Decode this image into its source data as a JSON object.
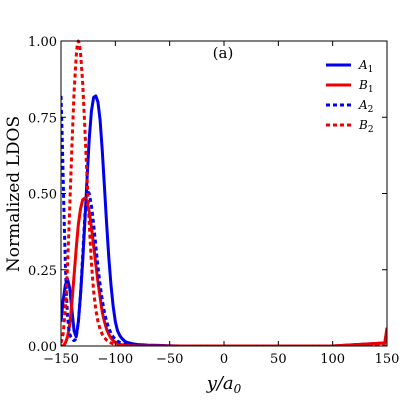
{
  "chart_data": {
    "type": "line",
    "panel_label": "(a)",
    "xlabel": "y/a",
    "xlabel_subscript": "0",
    "ylabel": "Normalized LDOS",
    "xlim": [
      -150,
      150
    ],
    "ylim": [
      0,
      1
    ],
    "xticks": [
      -150,
      -100,
      -50,
      0,
      50,
      100,
      150
    ],
    "xtick_labels": [
      "−150",
      "−100",
      "−50",
      "0",
      "50",
      "100",
      "150"
    ],
    "yticks": [
      0,
      0.25,
      0.5,
      0.75,
      1.0
    ],
    "ytick_labels": [
      "0.00",
      "0.25",
      "0.50",
      "0.75",
      "1.00"
    ],
    "grid": false,
    "legend_position": "top-right",
    "series": [
      {
        "name": "A",
        "name_subscript": "1",
        "color": "#0000ee",
        "dash": "solid",
        "x": [
          -150,
          -148,
          -146,
          -144,
          -142,
          -140,
          -138,
          -136,
          -134,
          -132,
          -130,
          -128,
          -126,
          -124,
          -122,
          -120,
          -118,
          -116,
          -114,
          -112,
          -110,
          -108,
          -106,
          -104,
          -102,
          -100,
          -98,
          -96,
          -94,
          -92,
          -90,
          -85,
          -80,
          -70,
          -60,
          -50,
          -40,
          0,
          50,
          100,
          148,
          150
        ],
        "y": [
          0.08,
          0.15,
          0.2,
          0.22,
          0.19,
          0.12,
          0.05,
          0.03,
          0.08,
          0.17,
          0.28,
          0.41,
          0.55,
          0.68,
          0.77,
          0.815,
          0.82,
          0.8,
          0.74,
          0.64,
          0.52,
          0.4,
          0.29,
          0.2,
          0.13,
          0.08,
          0.05,
          0.035,
          0.025,
          0.018,
          0.013,
          0.008,
          0.005,
          0.003,
          0.002,
          0.001,
          0,
          0,
          0,
          0,
          0.01,
          0.055
        ]
      },
      {
        "name": "B",
        "name_subscript": "1",
        "color": "#ee0000",
        "dash": "solid",
        "x": [
          -150,
          -148,
          -146,
          -144,
          -142,
          -140,
          -138,
          -136,
          -134,
          -132,
          -130,
          -128,
          -126,
          -124,
          -122,
          -120,
          -118,
          -116,
          -114,
          -112,
          -110,
          -108,
          -106,
          -104,
          -102,
          -100,
          -98,
          -96,
          -94,
          -92,
          -90,
          -85,
          -80,
          -70,
          -60,
          -50,
          -40,
          0,
          50,
          100,
          148,
          150
        ],
        "y": [
          0,
          0,
          0.01,
          0.03,
          0.07,
          0.14,
          0.23,
          0.32,
          0.4,
          0.45,
          0.48,
          0.485,
          0.47,
          0.44,
          0.39,
          0.33,
          0.27,
          0.21,
          0.16,
          0.11,
          0.08,
          0.055,
          0.038,
          0.026,
          0.018,
          0.012,
          0.008,
          0.006,
          0.004,
          0.003,
          0.002,
          0.001,
          0,
          0,
          0,
          0,
          0,
          0,
          0,
          0,
          0.01,
          0.06
        ]
      },
      {
        "name": "A",
        "name_subscript": "2",
        "color": "#0000ee",
        "dash": "dotted",
        "x": [
          -150,
          -149,
          -148,
          -147,
          -146,
          -145,
          -144,
          -143,
          -142,
          -141,
          -140,
          -139,
          -138,
          -137,
          -136,
          -134,
          -132,
          -130,
          -128,
          -126,
          -124,
          -122,
          -120,
          -118,
          -116,
          -114,
          -112,
          -110,
          -108,
          -106,
          -104,
          -102,
          -100,
          -98,
          -96,
          -94,
          -92,
          -90,
          -85,
          -80,
          -70,
          -60,
          -50,
          -40,
          0,
          50,
          100,
          150
        ],
        "y": [
          0.82,
          0.7,
          0.55,
          0.4,
          0.27,
          0.17,
          0.1,
          0.06,
          0.04,
          0.03,
          0.025,
          0.02,
          0.018,
          0.02,
          0.03,
          0.08,
          0.17,
          0.3,
          0.43,
          0.51,
          0.5,
          0.46,
          0.4,
          0.33,
          0.26,
          0.2,
          0.15,
          0.11,
          0.08,
          0.058,
          0.042,
          0.03,
          0.022,
          0.016,
          0.012,
          0.009,
          0.007,
          0.005,
          0.003,
          0.002,
          0.001,
          0,
          0,
          0,
          0,
          0,
          0,
          0
        ]
      },
      {
        "name": "B",
        "name_subscript": "2",
        "color": "#ee0000",
        "dash": "dotted",
        "x": [
          -150,
          -148,
          -146,
          -144,
          -142,
          -140,
          -138,
          -136,
          -135,
          -134,
          -133,
          -132,
          -130,
          -128,
          -126,
          -124,
          -122,
          -120,
          -118,
          -116,
          -114,
          -112,
          -110,
          -108,
          -106,
          -104,
          -102,
          -100,
          -98,
          -96,
          -94,
          -92,
          -90,
          -85,
          -80,
          -70,
          -60,
          -50,
          -40,
          0,
          50,
          100,
          150
        ],
        "y": [
          0.01,
          0.04,
          0.12,
          0.26,
          0.45,
          0.65,
          0.83,
          0.95,
          0.99,
          1.0,
          0.99,
          0.96,
          0.86,
          0.71,
          0.55,
          0.4,
          0.27,
          0.18,
          0.12,
          0.08,
          0.055,
          0.038,
          0.027,
          0.019,
          0.014,
          0.01,
          0.007,
          0.005,
          0.004,
          0.003,
          0.002,
          0.0015,
          0.001,
          0.0005,
          0,
          0,
          0,
          0,
          0,
          0,
          0,
          0,
          0
        ]
      }
    ]
  }
}
